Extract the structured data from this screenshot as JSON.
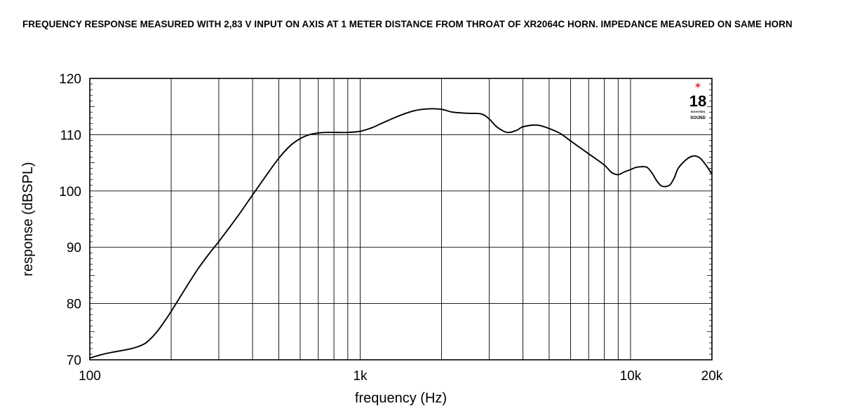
{
  "header": {
    "title": "FREQUENCY RESPONSE MEASURED WITH 2,83 V INPUT ON AXIS AT 1 METER DISTANCE FROM THROAT OF XR2064C HORN. IMPEDANCE MEASURED ON SAME HORN"
  },
  "logo": {
    "text_main": "18",
    "text_sub1": "EIGHTEEN",
    "text_sub2": "SOUND",
    "star_color": "#e8262b"
  },
  "colors": {
    "line": "#000000",
    "grid": "#000000",
    "frame": "#000000"
  },
  "chart_data": {
    "type": "line",
    "title": "",
    "xlabel": "frequency (Hz)",
    "ylabel": "response (dBSPL)",
    "x_scale": "log",
    "xlim": [
      100,
      20000
    ],
    "ylim": [
      70,
      120
    ],
    "grid": true,
    "x_ticks": [
      {
        "value": 100,
        "label": "100"
      },
      {
        "value": 1000,
        "label": "1k"
      },
      {
        "value": 10000,
        "label": "10k"
      },
      {
        "value": 20000,
        "label": "20k"
      }
    ],
    "y_ticks": [
      {
        "value": 70,
        "label": "70"
      },
      {
        "value": 80,
        "label": "80"
      },
      {
        "value": 90,
        "label": "90"
      },
      {
        "value": 100,
        "label": "100"
      },
      {
        "value": 110,
        "label": "110"
      },
      {
        "value": 120,
        "label": "120"
      }
    ],
    "x_gridlines": [
      100,
      200,
      300,
      400,
      500,
      600,
      700,
      800,
      900,
      1000,
      2000,
      3000,
      4000,
      5000,
      6000,
      7000,
      8000,
      9000,
      10000,
      20000
    ],
    "series": [
      {
        "x": [
          100,
          110,
          120,
          130,
          140,
          150,
          160,
          170,
          180,
          190,
          200,
          220,
          250,
          280,
          300,
          350,
          400,
          450,
          500,
          550,
          600,
          650,
          700,
          750,
          800,
          900,
          1000,
          1100,
          1200,
          1400,
          1600,
          1800,
          2000,
          2200,
          2500,
          2800,
          3000,
          3200,
          3500,
          3800,
          4000,
          4500,
          5000,
          5500,
          6000,
          7000,
          8000,
          8500,
          9000,
          9500,
          10000,
          10500,
          11000,
          11500,
          12000,
          12500,
          13000,
          13500,
          14000,
          14500,
          15000,
          16000,
          17000,
          18000,
          19000,
          20000
        ],
        "y": [
          70.3,
          70.9,
          71.3,
          71.6,
          71.9,
          72.3,
          72.9,
          74.0,
          75.4,
          77.0,
          78.6,
          81.8,
          86.0,
          89.2,
          91.0,
          95.3,
          99.3,
          102.8,
          105.8,
          108.0,
          109.3,
          110.0,
          110.3,
          110.4,
          110.4,
          110.4,
          110.6,
          111.2,
          112.0,
          113.4,
          114.3,
          114.6,
          114.5,
          114.0,
          113.8,
          113.7,
          112.8,
          111.4,
          110.4,
          110.8,
          111.4,
          111.7,
          111.1,
          110.2,
          108.9,
          106.6,
          104.6,
          103.3,
          102.9,
          103.4,
          103.8,
          104.2,
          104.3,
          104.2,
          103.2,
          101.8,
          100.9,
          100.8,
          101.1,
          102.3,
          104.0,
          105.5,
          106.2,
          105.9,
          104.6,
          103.0
        ]
      }
    ]
  }
}
